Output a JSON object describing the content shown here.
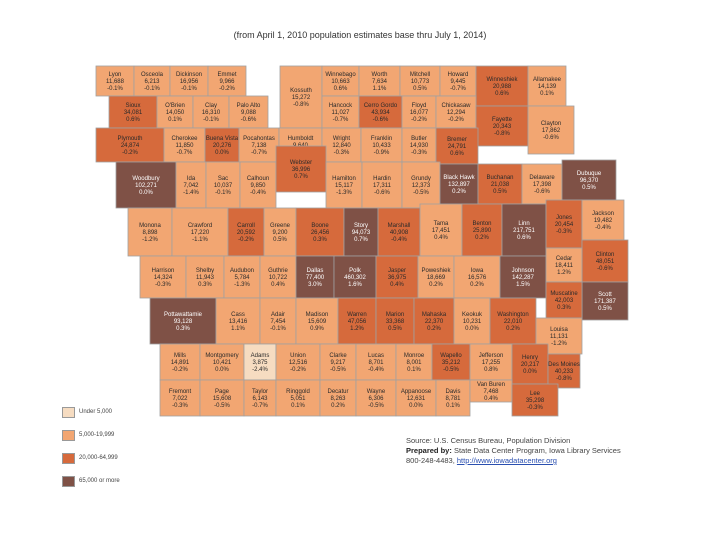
{
  "header": {
    "subtitle": "(from April 1, 2010 population estimates base thru July 1, 2014)"
  },
  "colors": {
    "lt5k": "#f6dcc1",
    "5k_20k": "#f2a672",
    "20k_65k": "#d66a3c",
    "65k_plus": "#7f5146",
    "border": "#a0a0a0"
  },
  "legend": [
    {
      "label": "Under 5,000",
      "color": "#f6dcc1"
    },
    {
      "label": "5,000-19,999",
      "color": "#f2a672"
    },
    {
      "label": "20,000-64,999",
      "color": "#d66a3c"
    },
    {
      "label": "65,000 or more",
      "color": "#7f5146"
    }
  ],
  "source": {
    "line1": "Source: U.S. Census Bureau, Population Division",
    "prepared_label": "Prepared by:",
    "prepared_by": "State Data Center Program, Iowa Library Services",
    "phone": "800-248-4483,",
    "url": "http://www.iowadatacenter.org"
  },
  "counties": [
    {
      "name": "Lyon",
      "pop": "11,688",
      "chg": "-0.1%",
      "cat": 1
    },
    {
      "name": "Osceola",
      "pop": "6,213",
      "chg": "-0.1%",
      "cat": 1
    },
    {
      "name": "Dickinson",
      "pop": "16,956",
      "chg": "-0.1%",
      "cat": 1
    },
    {
      "name": "Emmet",
      "pop": "9,966",
      "chg": "-0.2%",
      "cat": 1
    },
    {
      "name": "Kossuth",
      "pop": "15,272",
      "chg": "-0.8%",
      "cat": 1
    },
    {
      "name": "Winnebago",
      "pop": "10,663",
      "chg": "0.6%",
      "cat": 1
    },
    {
      "name": "Worth",
      "pop": "7,634",
      "chg": "1.1%",
      "cat": 1
    },
    {
      "name": "Mitchell",
      "pop": "10,773",
      "chg": "0.5%",
      "cat": 1
    },
    {
      "name": "Howard",
      "pop": "9,445",
      "chg": "-0.7%",
      "cat": 1
    },
    {
      "name": "Winneshiek",
      "pop": "20,988",
      "chg": "0.6%",
      "cat": 2
    },
    {
      "name": "Allamakee",
      "pop": "14,139",
      "chg": "0.1%",
      "cat": 1
    },
    {
      "name": "Sioux",
      "pop": "34,081",
      "chg": "0.6%",
      "cat": 2
    },
    {
      "name": "O'Brien",
      "pop": "14,050",
      "chg": "0.1%",
      "cat": 1
    },
    {
      "name": "Clay",
      "pop": "16,310",
      "chg": "-0.1%",
      "cat": 1
    },
    {
      "name": "Palo Alto",
      "pop": "9,088",
      "chg": "-0.6%",
      "cat": 1
    },
    {
      "name": "Hancock",
      "pop": "11,027",
      "chg": "-0.7%",
      "cat": 1
    },
    {
      "name": "Cerro Gordo",
      "pop": "43,934",
      "chg": "-0.6%",
      "cat": 2
    },
    {
      "name": "Floyd",
      "pop": "16,077",
      "chg": "-0.2%",
      "cat": 1
    },
    {
      "name": "Chickasaw",
      "pop": "12,294",
      "chg": "-0.2%",
      "cat": 1
    },
    {
      "name": "Fayette",
      "pop": "20,343",
      "chg": "-0.8%",
      "cat": 2
    },
    {
      "name": "Clayton",
      "pop": "17,862",
      "chg": "-0.6%",
      "cat": 1
    },
    {
      "name": "Plymouth",
      "pop": "24,874",
      "chg": "-0.2%",
      "cat": 2
    },
    {
      "name": "Cherokee",
      "pop": "11,850",
      "chg": "-0.7%",
      "cat": 1
    },
    {
      "name": "Buena Vista",
      "pop": "20,276",
      "chg": "0.0%",
      "cat": 2
    },
    {
      "name": "Pocahontas",
      "pop": "7,138",
      "chg": "-0.7%",
      "cat": 1
    },
    {
      "name": "Humboldt",
      "pop": "9,640",
      "chg": "-0.4%",
      "cat": 1
    },
    {
      "name": "Wright",
      "pop": "12,840",
      "chg": "-0.3%",
      "cat": 1
    },
    {
      "name": "Franklin",
      "pop": "10,433",
      "chg": "-0.9%",
      "cat": 1
    },
    {
      "name": "Butler",
      "pop": "14,930",
      "chg": "-0.3%",
      "cat": 1
    },
    {
      "name": "Bremer",
      "pop": "24,791",
      "chg": "0.6%",
      "cat": 2
    },
    {
      "name": "Woodbury",
      "pop": "102,271",
      "chg": "0.0%",
      "cat": 3
    },
    {
      "name": "Ida",
      "pop": "7,042",
      "chg": "-1.4%",
      "cat": 1
    },
    {
      "name": "Sac",
      "pop": "10,037",
      "chg": "-0.1%",
      "cat": 1
    },
    {
      "name": "Calhoun",
      "pop": "9,850",
      "chg": "-0.4%",
      "cat": 1
    },
    {
      "name": "Webster",
      "pop": "36,996",
      "chg": "0.7%",
      "cat": 2
    },
    {
      "name": "Hamilton",
      "pop": "15,117",
      "chg": "-1.3%",
      "cat": 1
    },
    {
      "name": "Hardin",
      "pop": "17,311",
      "chg": "-0.6%",
      "cat": 1
    },
    {
      "name": "Grundy",
      "pop": "12,373",
      "chg": "-0.5%",
      "cat": 1
    },
    {
      "name": "Black Hawk",
      "pop": "132,897",
      "chg": "0.2%",
      "cat": 3
    },
    {
      "name": "Buchanan",
      "pop": "21,038",
      "chg": "0.5%",
      "cat": 2
    },
    {
      "name": "Delaware",
      "pop": "17,398",
      "chg": "-0.6%",
      "cat": 1
    },
    {
      "name": "Dubuque",
      "pop": "96,370",
      "chg": "0.5%",
      "cat": 3
    },
    {
      "name": "Monona",
      "pop": "8,898",
      "chg": "-1.2%",
      "cat": 1
    },
    {
      "name": "Crawford",
      "pop": "17,220",
      "chg": "-1.1%",
      "cat": 1
    },
    {
      "name": "Carroll",
      "pop": "20,592",
      "chg": "-0.2%",
      "cat": 2
    },
    {
      "name": "Greene",
      "pop": "9,200",
      "chg": "0.5%",
      "cat": 1
    },
    {
      "name": "Boone",
      "pop": "26,456",
      "chg": "0.3%",
      "cat": 2
    },
    {
      "name": "Story",
      "pop": "94,073",
      "chg": "0.7%",
      "cat": 3
    },
    {
      "name": "Marshall",
      "pop": "40,908",
      "chg": "-0.4%",
      "cat": 2
    },
    {
      "name": "Tama",
      "pop": "17,451",
      "chg": "0.4%",
      "cat": 1
    },
    {
      "name": "Benton",
      "pop": "25,890",
      "chg": "0.2%",
      "cat": 2
    },
    {
      "name": "Linn",
      "pop": "217,751",
      "chg": "0.6%",
      "cat": 3
    },
    {
      "name": "Jones",
      "pop": "20,454",
      "chg": "-0.3%",
      "cat": 2
    },
    {
      "name": "Jackson",
      "pop": "19,482",
      "chg": "-0.4%",
      "cat": 1
    },
    {
      "name": "Clinton",
      "pop": "48,051",
      "chg": "-0.6%",
      "cat": 2
    },
    {
      "name": "Harrison",
      "pop": "14,324",
      "chg": "-0.3%",
      "cat": 1
    },
    {
      "name": "Shelby",
      "pop": "11,943",
      "chg": "0.3%",
      "cat": 1
    },
    {
      "name": "Audubon",
      "pop": "5,784",
      "chg": "-1.3%",
      "cat": 1
    },
    {
      "name": "Guthrie",
      "pop": "10,722",
      "chg": "0.4%",
      "cat": 1
    },
    {
      "name": "Dallas",
      "pop": "77,400",
      "chg": "3.0%",
      "cat": 3
    },
    {
      "name": "Polk",
      "pop": "460,302",
      "chg": "1.6%",
      "cat": 3
    },
    {
      "name": "Jasper",
      "pop": "36,975",
      "chg": "0.4%",
      "cat": 2
    },
    {
      "name": "Poweshiek",
      "pop": "18,669",
      "chg": "0.2%",
      "cat": 1
    },
    {
      "name": "Iowa",
      "pop": "16,576",
      "chg": "0.2%",
      "cat": 1
    },
    {
      "name": "Johnson",
      "pop": "142,287",
      "chg": "1.5%",
      "cat": 3
    },
    {
      "name": "Cedar",
      "pop": "18,411",
      "chg": "1.2%",
      "cat": 1
    },
    {
      "name": "Scott",
      "pop": "171,387",
      "chg": "0.5%",
      "cat": 3
    },
    {
      "name": "Muscatine",
      "pop": "42,003",
      "chg": "0.3%",
      "cat": 2
    },
    {
      "name": "Pottawattamie",
      "pop": "93,128",
      "chg": "0.3%",
      "cat": 3
    },
    {
      "name": "Cass",
      "pop": "13,416",
      "chg": "1.1%",
      "cat": 1
    },
    {
      "name": "Adair",
      "pop": "7,454",
      "chg": "-0.1%",
      "cat": 1
    },
    {
      "name": "Madison",
      "pop": "15,609",
      "chg": "0.9%",
      "cat": 1
    },
    {
      "name": "Warren",
      "pop": "47,056",
      "chg": "1.2%",
      "cat": 2
    },
    {
      "name": "Marion",
      "pop": "33,368",
      "chg": "0.5%",
      "cat": 2
    },
    {
      "name": "Mahaska",
      "pop": "22,370",
      "chg": "0.2%",
      "cat": 2
    },
    {
      "name": "Keokuk",
      "pop": "10,231",
      "chg": "0.0%",
      "cat": 1
    },
    {
      "name": "Washington",
      "pop": "22,010",
      "chg": "0.2%",
      "cat": 2
    },
    {
      "name": "Louisa",
      "pop": "11,131",
      "chg": "-1.2%",
      "cat": 1
    },
    {
      "name": "Mills",
      "pop": "14,891",
      "chg": "-0.2%",
      "cat": 1
    },
    {
      "name": "Montgomery",
      "pop": "10,421",
      "chg": "0.0%",
      "cat": 1
    },
    {
      "name": "Adams",
      "pop": "3,875",
      "chg": "-2.4%",
      "cat": 0
    },
    {
      "name": "Union",
      "pop": "12,516",
      "chg": "-0.2%",
      "cat": 1
    },
    {
      "name": "Clarke",
      "pop": "9,217",
      "chg": "-0.5%",
      "cat": 1
    },
    {
      "name": "Lucas",
      "pop": "8,701",
      "chg": "-0.4%",
      "cat": 1
    },
    {
      "name": "Monroe",
      "pop": "8,001",
      "chg": "0.1%",
      "cat": 1
    },
    {
      "name": "Wapello",
      "pop": "35,212",
      "chg": "-0.5%",
      "cat": 2
    },
    {
      "name": "Jefferson",
      "pop": "17,255",
      "chg": "0.8%",
      "cat": 1
    },
    {
      "name": "Henry",
      "pop": "20,217",
      "chg": "0.0%",
      "cat": 2
    },
    {
      "name": "Des Moines",
      "pop": "40,233",
      "chg": "-0.8%",
      "cat": 2
    },
    {
      "name": "Fremont",
      "pop": "7,022",
      "chg": "-0.3%",
      "cat": 1
    },
    {
      "name": "Page",
      "pop": "15,608",
      "chg": "-0.5%",
      "cat": 1
    },
    {
      "name": "Taylor",
      "pop": "6,143",
      "chg": "-0.7%",
      "cat": 1
    },
    {
      "name": "Ringgold",
      "pop": "5,051",
      "chg": "0.1%",
      "cat": 1
    },
    {
      "name": "Decatur",
      "pop": "8,263",
      "chg": "0.2%",
      "cat": 1
    },
    {
      "name": "Wayne",
      "pop": "6,306",
      "chg": "-0.5%",
      "cat": 1
    },
    {
      "name": "Appanoose",
      "pop": "12,631",
      "chg": "0.0%",
      "cat": 1
    },
    {
      "name": "Davis",
      "pop": "8,781",
      "chg": "0.1%",
      "cat": 1
    },
    {
      "name": "Van Buren",
      "pop": "7,468",
      "chg": "0.4%",
      "cat": 1
    },
    {
      "name": "Lee",
      "pop": "35,298",
      "chg": "-0.3%",
      "cat": 2
    }
  ]
}
